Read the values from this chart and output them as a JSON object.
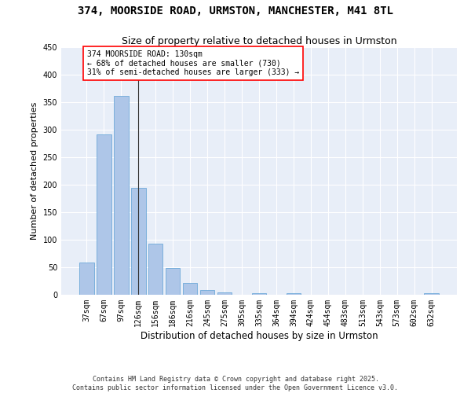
{
  "title": "374, MOORSIDE ROAD, URMSTON, MANCHESTER, M41 8TL",
  "subtitle": "Size of property relative to detached houses in Urmston",
  "xlabel": "Distribution of detached houses by size in Urmston",
  "ylabel": "Number of detached properties",
  "bar_labels": [
    "37sqm",
    "67sqm",
    "97sqm",
    "126sqm",
    "156sqm",
    "186sqm",
    "216sqm",
    "245sqm",
    "275sqm",
    "305sqm",
    "335sqm",
    "364sqm",
    "394sqm",
    "424sqm",
    "454sqm",
    "483sqm",
    "513sqm",
    "543sqm",
    "573sqm",
    "602sqm",
    "632sqm"
  ],
  "bar_values": [
    58,
    292,
    362,
    195,
    93,
    49,
    21,
    9,
    4,
    0,
    3,
    0,
    3,
    0,
    0,
    0,
    0,
    0,
    0,
    0,
    3
  ],
  "bar_color": "#aec6e8",
  "bar_edge_color": "#5a9fd4",
  "vline_x_index": 3,
  "vline_color": "#333333",
  "annotation_text": "374 MOORSIDE ROAD: 130sqm\n← 68% of detached houses are smaller (730)\n31% of semi-detached houses are larger (333) →",
  "annotation_box_color": "white",
  "annotation_box_edge_color": "red",
  "ylim": [
    0,
    450
  ],
  "yticks": [
    0,
    50,
    100,
    150,
    200,
    250,
    300,
    350,
    400,
    450
  ],
  "background_color": "#e8eef8",
  "grid_color": "white",
  "footer": "Contains HM Land Registry data © Crown copyright and database right 2025.\nContains public sector information licensed under the Open Government Licence v3.0.",
  "title_fontsize": 10,
  "subtitle_fontsize": 9,
  "xlabel_fontsize": 8.5,
  "ylabel_fontsize": 8,
  "tick_fontsize": 7,
  "annotation_fontsize": 7,
  "footer_fontsize": 6
}
